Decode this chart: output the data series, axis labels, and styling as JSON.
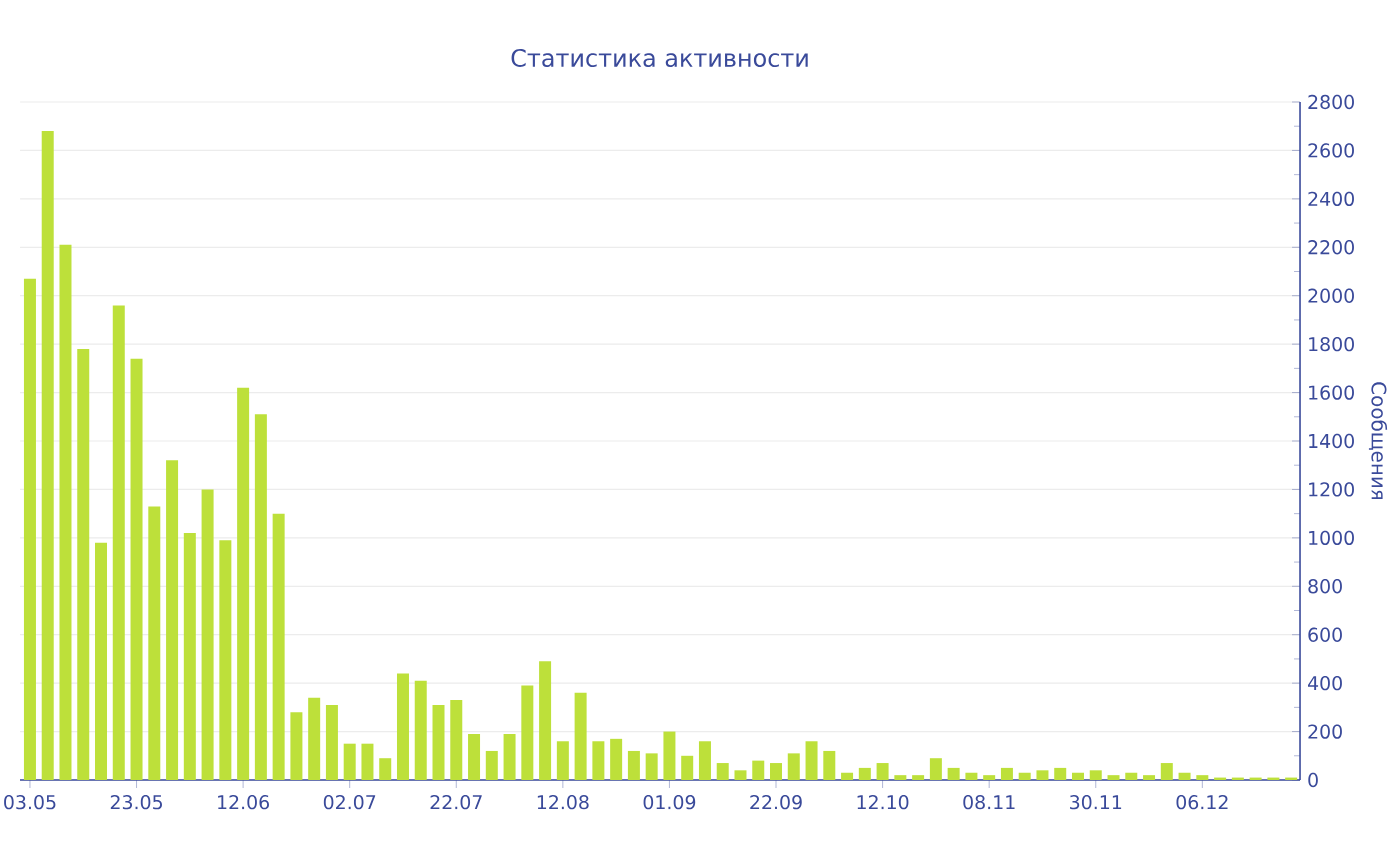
{
  "chart_data": {
    "type": "bar",
    "title": "Статистика активности",
    "ylabel": "Сообщения",
    "categories": [
      "03.05",
      null,
      null,
      null,
      null,
      null,
      "23.05",
      null,
      null,
      null,
      null,
      null,
      "12.06",
      null,
      null,
      null,
      null,
      null,
      "02.07",
      null,
      null,
      null,
      null,
      null,
      "22.07",
      null,
      null,
      null,
      null,
      null,
      "12.08",
      null,
      null,
      null,
      null,
      null,
      "01.09",
      null,
      null,
      null,
      null,
      null,
      "22.09",
      null,
      null,
      null,
      null,
      null,
      "12.10",
      null,
      null,
      null,
      null,
      null,
      "08.11",
      null,
      null,
      null,
      null,
      null,
      "30.11",
      null,
      null,
      null,
      null,
      null,
      "06.12",
      null,
      null,
      null,
      null,
      null
    ],
    "values": [
      2070,
      2680,
      2210,
      1780,
      980,
      1960,
      1740,
      1130,
      1320,
      1020,
      1200,
      990,
      1620,
      1510,
      1100,
      280,
      340,
      310,
      150,
      150,
      90,
      440,
      410,
      310,
      330,
      190,
      120,
      190,
      390,
      490,
      160,
      360,
      160,
      170,
      120,
      110,
      200,
      100,
      160,
      70,
      40,
      80,
      70,
      110,
      160,
      120,
      30,
      50,
      70,
      20,
      20,
      90,
      50,
      30,
      20,
      50,
      30,
      40,
      50,
      30,
      40,
      20,
      30,
      20,
      70,
      30,
      20,
      10,
      10,
      10,
      10,
      10
    ],
    "color": "#bde03a",
    "ylim": [
      0,
      2800
    ],
    "yticks": [
      0,
      200,
      400,
      600,
      800,
      1000,
      1200,
      1400,
      1600,
      1800,
      2000,
      2200,
      2400,
      2600,
      2800
    ],
    "grid": "y"
  }
}
